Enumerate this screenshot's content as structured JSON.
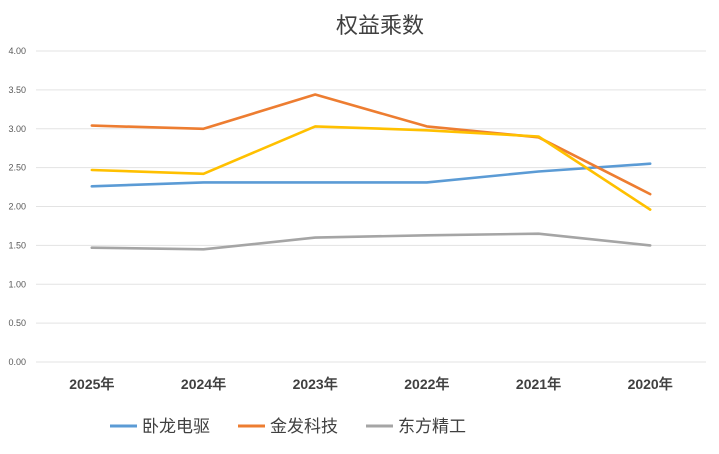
{
  "chart_data": {
    "type": "line",
    "title": "权益乘数",
    "xlabel": "",
    "ylabel": "",
    "categories": [
      "2025年",
      "2024年",
      "2023年",
      "2022年",
      "2021年",
      "2020年"
    ],
    "ylim": [
      0,
      4
    ],
    "yticks": [
      "0.00",
      "0.50",
      "1.00",
      "1.50",
      "2.00",
      "2.50",
      "3.00",
      "3.50",
      "4.00"
    ],
    "grid": true,
    "legend_position": "bottom",
    "series": [
      {
        "name": "卧龙电驱",
        "color": "#5B9BD5",
        "values": [
          2.26,
          2.31,
          2.31,
          2.31,
          2.45,
          2.55
        ]
      },
      {
        "name": "金发科技",
        "color": "#ED7D31",
        "values": [
          3.04,
          3.0,
          3.44,
          3.03,
          2.89,
          2.16
        ]
      },
      {
        "name": "东方精工",
        "color": "#A5A5A5",
        "values": [
          1.47,
          1.45,
          1.6,
          1.63,
          1.65,
          1.5
        ]
      },
      {
        "name": "",
        "color": "#FFC000",
        "values": [
          2.47,
          2.42,
          3.03,
          2.98,
          2.9,
          1.96
        ]
      }
    ]
  }
}
